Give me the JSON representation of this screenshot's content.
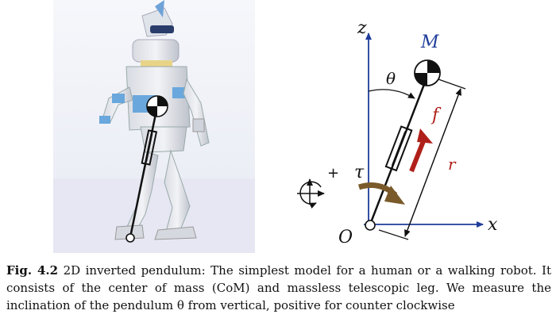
{
  "diagram": {
    "axis_z": "z",
    "axis_x": "x",
    "origin": "O",
    "mass": "M",
    "angle": "θ",
    "torque": "τ",
    "force": "f",
    "length": "r",
    "sign": "+"
  },
  "caption": {
    "label": "Fig. 4.2",
    "text": " 2D inverted pendulum: The simplest model for a human or a walking robot. It consists of the center of mass (CoM) and massless telescopic leg. We measure the inclination of the pendulum θ from vertical, positive for counter clockwise"
  },
  "colors": {
    "axis_blue": "#1f3d9a",
    "force_red": "#b0201a",
    "torque_brown": "#7a5a2a",
    "photo_bg": "#eef0f7"
  }
}
